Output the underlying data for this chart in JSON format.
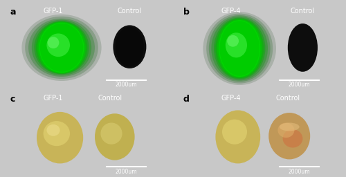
{
  "figure_bg": "#c8c8c8",
  "panel_bg": "#000000",
  "panels": [
    "a",
    "b",
    "c",
    "d"
  ],
  "axes_positions": {
    "a": [
      0.01,
      0.51,
      0.48,
      0.47
    ],
    "b": [
      0.51,
      0.51,
      0.48,
      0.47
    ],
    "c": [
      0.01,
      0.02,
      0.48,
      0.47
    ],
    "d": [
      0.51,
      0.02,
      0.48,
      0.47
    ]
  },
  "scale_bar_text": "2000um",
  "white": "#ffffff",
  "black": "#000000"
}
